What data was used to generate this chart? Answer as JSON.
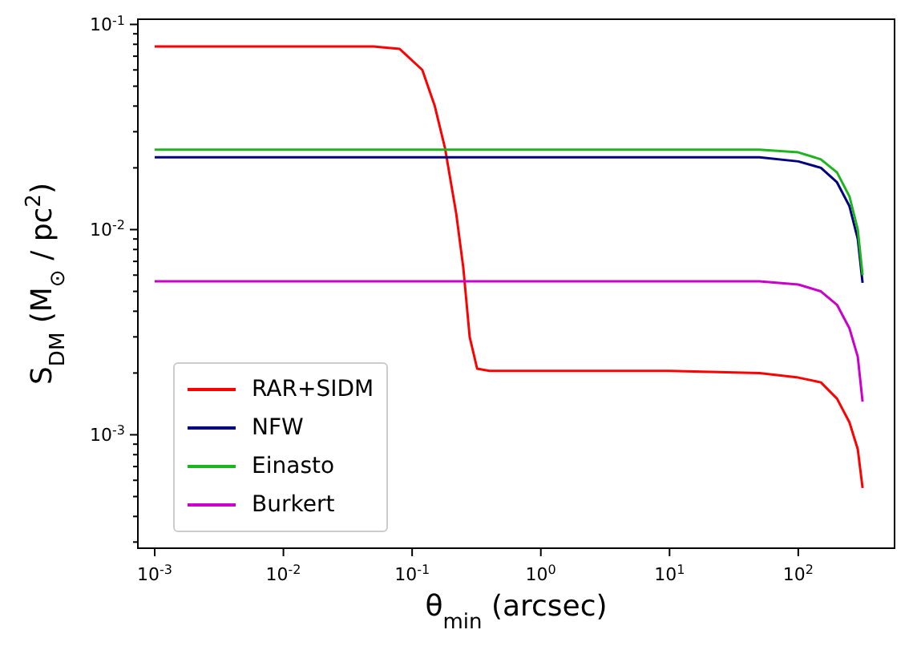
{
  "chart_data": {
    "type": "line",
    "xlabel": "θ$_{min}$ (arcsec)",
    "ylabel": "S$_{DM}$ (M$_{⊙}$ / pc$^{2}$)",
    "log": "xy",
    "grid": false,
    "legend": "bottom left",
    "marker": "none",
    "line_style": "solid",
    "xlim": [
      0.00074,
      560
    ],
    "ylim": [
      0.00028,
      0.106
    ],
    "xticks": [
      {
        "value": 0.001,
        "label": "10$^{-3}$"
      },
      {
        "value": 0.01,
        "label": "10$^{-2}$"
      },
      {
        "value": 0.1,
        "label": "10$^{-1}$"
      },
      {
        "value": 1,
        "label": "10$^{0}$"
      },
      {
        "value": 10,
        "label": "10$^{1}$"
      },
      {
        "value": 100,
        "label": "10$^{2}$"
      }
    ],
    "yticks": [
      {
        "value": 0.0003,
        "label": null
      },
      {
        "value": 0.0004,
        "label": null
      },
      {
        "value": 0.0005,
        "label": null
      },
      {
        "value": 0.0006,
        "label": null
      },
      {
        "value": 0.0007,
        "label": null
      },
      {
        "value": 0.0008,
        "label": null
      },
      {
        "value": 0.0009,
        "label": null
      },
      {
        "value": 0.001,
        "label": "10$^{-3}$"
      },
      {
        "value": 0.002,
        "label": null
      },
      {
        "value": 0.003,
        "label": null
      },
      {
        "value": 0.004,
        "label": null
      },
      {
        "value": 0.005,
        "label": null
      },
      {
        "value": 0.006,
        "label": null
      },
      {
        "value": 0.007,
        "label": null
      },
      {
        "value": 0.008,
        "label": null
      },
      {
        "value": 0.009,
        "label": null
      },
      {
        "value": 0.01,
        "label": "10$^{-2}$"
      },
      {
        "value": 0.02,
        "label": null
      },
      {
        "value": 0.03,
        "label": null
      },
      {
        "value": 0.04,
        "label": null
      },
      {
        "value": 0.05,
        "label": null
      },
      {
        "value": 0.06,
        "label": null
      },
      {
        "value": 0.07,
        "label": null
      },
      {
        "value": 0.08,
        "label": null
      },
      {
        "value": 0.09,
        "label": null
      },
      {
        "value": 0.1,
        "label": "10$^{-1}$"
      }
    ],
    "series": [
      {
        "name": "RAR+SIDM",
        "color": "#ff0000",
        "x": [
          0.001,
          0.01,
          0.05,
          0.08,
          0.12,
          0.15,
          0.18,
          0.22,
          0.25,
          0.28,
          0.32,
          0.4,
          1,
          10,
          50,
          100,
          150,
          200,
          250,
          290,
          316
        ],
        "values": [
          0.078,
          0.078,
          0.078,
          0.076,
          0.06,
          0.04,
          0.025,
          0.012,
          0.0065,
          0.003,
          0.0021,
          0.00205,
          0.00205,
          0.00205,
          0.002,
          0.0019,
          0.0018,
          0.0015,
          0.00115,
          0.00085,
          0.00055
        ]
      },
      {
        "name": "NFW",
        "color": "#000080",
        "x": [
          0.001,
          1,
          50,
          100,
          150,
          200,
          250,
          290,
          316
        ],
        "values": [
          0.0225,
          0.0225,
          0.0225,
          0.0215,
          0.02,
          0.017,
          0.013,
          0.009,
          0.0055
        ]
      },
      {
        "name": "Einasto",
        "color": "#1db51d",
        "x": [
          0.001,
          1,
          50,
          100,
          150,
          200,
          250,
          290,
          316
        ],
        "values": [
          0.0245,
          0.0245,
          0.0245,
          0.0238,
          0.022,
          0.019,
          0.0145,
          0.01,
          0.006
        ]
      },
      {
        "name": "Burkert",
        "color": "#cc00cc",
        "x": [
          0.001,
          1,
          50,
          100,
          150,
          200,
          250,
          290,
          316
        ],
        "values": [
          0.0056,
          0.0056,
          0.0056,
          0.0054,
          0.005,
          0.0043,
          0.0033,
          0.0024,
          0.00145
        ]
      }
    ]
  }
}
